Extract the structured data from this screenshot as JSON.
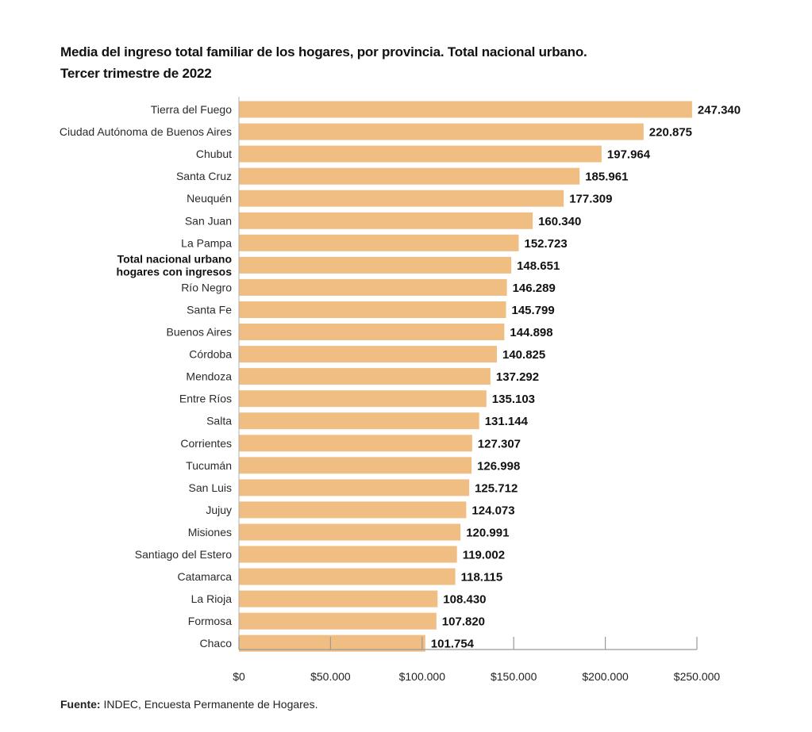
{
  "chart_data": {
    "type": "bar",
    "orientation": "horizontal",
    "title": "Media del ingreso total familiar de los hogares, por provincia. Total nacional urbano.",
    "subtitle": "Tercer trimestre de 2022",
    "categories": [
      "Tierra del Fuego",
      "Ciudad Autónoma de Buenos Aires",
      "Chubut",
      "Santa Cruz",
      "Neuquén",
      "San Juan",
      "La Pampa",
      "Total nacional urbano hogares con ingresos",
      "Río Negro",
      "Santa Fe",
      "Buenos Aires",
      "Córdoba",
      "Mendoza",
      "Entre Ríos",
      "Salta",
      "Corrientes",
      "Tucumán",
      "San Luis",
      "Jujuy",
      "Misiones",
      "Santiago del Estero",
      "Catamarca",
      "La Rioja",
      "Formosa",
      "Chaco"
    ],
    "category_lines": {
      "Total nacional urbano hogares con ingresos": [
        "Total nacional urbano",
        "hogares con ingresos"
      ]
    },
    "highlight_category": "Total nacional urbano hogares con ingresos",
    "values": [
      247340,
      220875,
      197964,
      185961,
      177309,
      160340,
      152723,
      148651,
      146289,
      145799,
      144898,
      140825,
      137292,
      135103,
      131144,
      127307,
      126998,
      125712,
      124073,
      120991,
      119002,
      118115,
      108430,
      107820,
      101754
    ],
    "value_labels": [
      "247.340",
      "220.875",
      "197.964",
      "185.961",
      "177.309",
      "160.340",
      "152.723",
      "148.651",
      "146.289",
      "145.799",
      "144.898",
      "140.825",
      "137.292",
      "135.103",
      "131.144",
      "127.307",
      "126.998",
      "125.712",
      "124.073",
      "120.991",
      "119.002",
      "118.115",
      "108.430",
      "107.820",
      "101.754"
    ],
    "xlim": [
      0,
      250000
    ],
    "x_ticks": [
      0,
      50000,
      100000,
      150000,
      200000,
      250000
    ],
    "x_tick_labels": [
      "$0",
      "$50.000",
      "$100.000",
      "$150.000",
      "$200.000",
      "$250.000"
    ],
    "bar_color": "#f0bd83",
    "grid": false
  },
  "source": {
    "label": "Fuente:",
    "text": " INDEC, Encuesta Permanente de Hogares."
  }
}
